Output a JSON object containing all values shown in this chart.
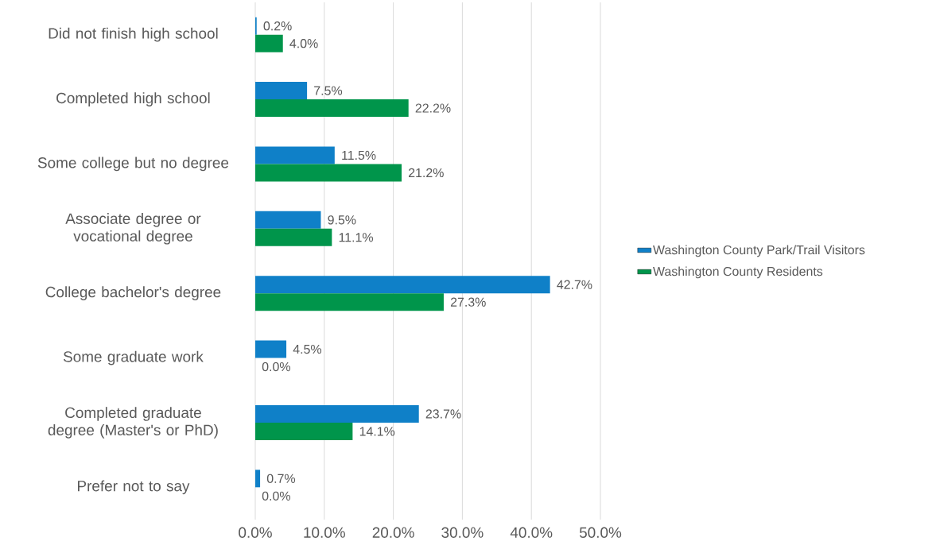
{
  "chart_data": {
    "type": "bar",
    "orientation": "horizontal",
    "categories": [
      "Did not finish high school",
      "Completed high school",
      "Some college but no degree",
      "Associate degree or vocational degree",
      "College bachelor's degree",
      "Some graduate work",
      "Completed graduate degree (Master's or PhD)",
      "Prefer not to say"
    ],
    "series": [
      {
        "name": "Washington County Park/Trail Visitors",
        "color": "#0f80c8",
        "values": [
          0.2,
          7.5,
          11.5,
          9.5,
          42.7,
          4.5,
          23.7,
          0.7
        ],
        "value_labels": [
          "0.2%",
          "7.5%",
          "11.5%",
          "9.5%",
          "42.7%",
          "4.5%",
          "23.7%",
          "0.7%"
        ]
      },
      {
        "name": "Washington County Residents",
        "color": "#00954b",
        "values": [
          4.0,
          22.2,
          21.2,
          11.1,
          27.3,
          0.0,
          14.1,
          0.0
        ],
        "value_labels": [
          "4.0%",
          "22.2%",
          "21.2%",
          "11.1%",
          "27.3%",
          "0.0%",
          "14.1%",
          "0.0%"
        ]
      }
    ],
    "xlim": [
      0,
      50
    ],
    "xticks": [
      {
        "value": 0,
        "label": "0.0%"
      },
      {
        "value": 10,
        "label": "10.0%"
      },
      {
        "value": 20,
        "label": "20.0%"
      },
      {
        "value": 30,
        "label": "30.0%"
      },
      {
        "value": 40,
        "label": "40.0%"
      },
      {
        "value": 50,
        "label": "50.0%"
      }
    ],
    "grid": "x",
    "legend": "right"
  }
}
